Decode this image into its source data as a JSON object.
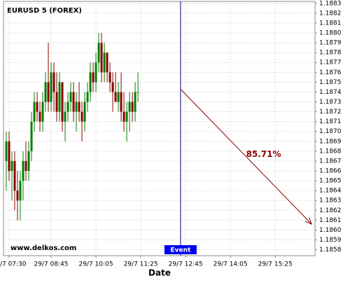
{
  "chart_data": {
    "type": "candlestick",
    "title": "EURUSD 5 (FOREX)",
    "watermark": "www.delkos.com",
    "x_label": "Date",
    "x": [
      445,
      450,
      455,
      460,
      465,
      470,
      475,
      480,
      485,
      490,
      495,
      500,
      505,
      510,
      515,
      520,
      525,
      530,
      535,
      540,
      545,
      550,
      555,
      560,
      565,
      570,
      575,
      580,
      585,
      590,
      595,
      600,
      605,
      610,
      615,
      620,
      625,
      630,
      635,
      640,
      645,
      650,
      655,
      660,
      665,
      670,
      675,
      680
    ],
    "series": {
      "open": [
        1.1867,
        1.1869,
        1.1866,
        1.1867,
        1.1864,
        1.1863,
        1.1865,
        1.1867,
        1.1866,
        1.1868,
        1.1871,
        1.1873,
        1.1872,
        1.1871,
        1.1873,
        1.1875,
        1.1873,
        1.1876,
        1.1874,
        1.1872,
        1.1875,
        1.1871,
        1.1872,
        1.1873,
        1.1874,
        1.1872,
        1.1873,
        1.1872,
        1.1871,
        1.1873,
        1.1874,
        1.1876,
        1.1875,
        1.1877,
        1.1879,
        1.1876,
        1.1878,
        1.1876,
        1.1875,
        1.1874,
        1.1873,
        1.1874,
        1.1872,
        1.1871,
        1.1872,
        1.1873,
        1.1872,
        1.1874
      ],
      "high": [
        1.187,
        1.187,
        1.1868,
        1.1868,
        1.1866,
        1.1866,
        1.1868,
        1.1869,
        1.1869,
        1.1872,
        1.1874,
        1.1874,
        1.1873,
        1.1874,
        1.1876,
        1.1879,
        1.1877,
        1.1877,
        1.1876,
        1.1876,
        1.1875,
        1.1873,
        1.1874,
        1.1875,
        1.1875,
        1.1874,
        1.1875,
        1.1873,
        1.1874,
        1.1875,
        1.1877,
        1.1877,
        1.1878,
        1.188,
        1.188,
        1.1879,
        1.1878,
        1.1877,
        1.1876,
        1.1876,
        1.1875,
        1.1876,
        1.1874,
        1.1873,
        1.1874,
        1.1874,
        1.1875,
        1.1876
      ],
      "low": [
        1.1864,
        1.1865,
        1.1863,
        1.1862,
        1.1861,
        1.1861,
        1.1863,
        1.1865,
        1.1865,
        1.1867,
        1.187,
        1.1871,
        1.187,
        1.187,
        1.1872,
        1.1872,
        1.1872,
        1.1872,
        1.1871,
        1.1871,
        1.187,
        1.1869,
        1.1871,
        1.1872,
        1.1871,
        1.187,
        1.1871,
        1.1869,
        1.187,
        1.1872,
        1.1873,
        1.1874,
        1.1874,
        1.1876,
        1.1875,
        1.1875,
        1.1875,
        1.1874,
        1.1872,
        1.1873,
        1.1872,
        1.1871,
        1.187,
        1.1869,
        1.187,
        1.1871,
        1.1871,
        1.1873
      ],
      "close": [
        1.1869,
        1.1866,
        1.1867,
        1.1864,
        1.1863,
        1.1865,
        1.1867,
        1.1866,
        1.1868,
        1.1871,
        1.1873,
        1.1872,
        1.1871,
        1.1873,
        1.1875,
        1.1873,
        1.1876,
        1.1874,
        1.1872,
        1.1875,
        1.1871,
        1.1872,
        1.1873,
        1.1874,
        1.1872,
        1.1873,
        1.1872,
        1.1871,
        1.1873,
        1.1874,
        1.1876,
        1.1875,
        1.1877,
        1.1879,
        1.1876,
        1.1878,
        1.1876,
        1.1875,
        1.1874,
        1.1873,
        1.1874,
        1.1872,
        1.1871,
        1.1872,
        1.1873,
        1.1872,
        1.1874,
        1.1874
      ]
    },
    "up_color": "#008000",
    "down_color": "#8b0000",
    "xlim": [
      440,
      996
    ],
    "ylim": [
      1.18574,
      1.18832
    ],
    "xticks": [
      {
        "value": 450,
        "label": "29/7 07:30"
      },
      {
        "value": 525,
        "label": "29/7 08:45"
      },
      {
        "value": 605,
        "label": "29/7 10:05"
      },
      {
        "value": 685,
        "label": "29/7 11:25"
      },
      {
        "value": 765,
        "label": "29/7 12:45"
      },
      {
        "value": 845,
        "label": "29/7 14:05"
      },
      {
        "value": 925,
        "label": "29/7 15:25"
      }
    ],
    "yticks": [
      1.1858,
      1.1859,
      {
        "value": 1.186,
        "label": "1.1860"
      },
      1.1861,
      1.1862,
      1.1863,
      1.1864,
      1.1865,
      1.1866,
      1.1867,
      1.1868,
      1.1869,
      {
        "value": 1.187,
        "label": "1.1870"
      },
      1.1871,
      1.1872,
      1.1873,
      1.1874,
      1.1875,
      1.1876,
      1.1877,
      1.1878,
      1.1879,
      {
        "value": 1.188,
        "label": "1.1880"
      },
      1.1881,
      1.1882,
      1.1883
    ],
    "grid": true,
    "event": {
      "x": 756,
      "label": "Event",
      "color": "#00008b"
    },
    "projection": {
      "x": [
        756,
        990
      ],
      "y": [
        1.18743,
        1.18606
      ],
      "label": "85.71%",
      "color": "#8b0000"
    }
  }
}
